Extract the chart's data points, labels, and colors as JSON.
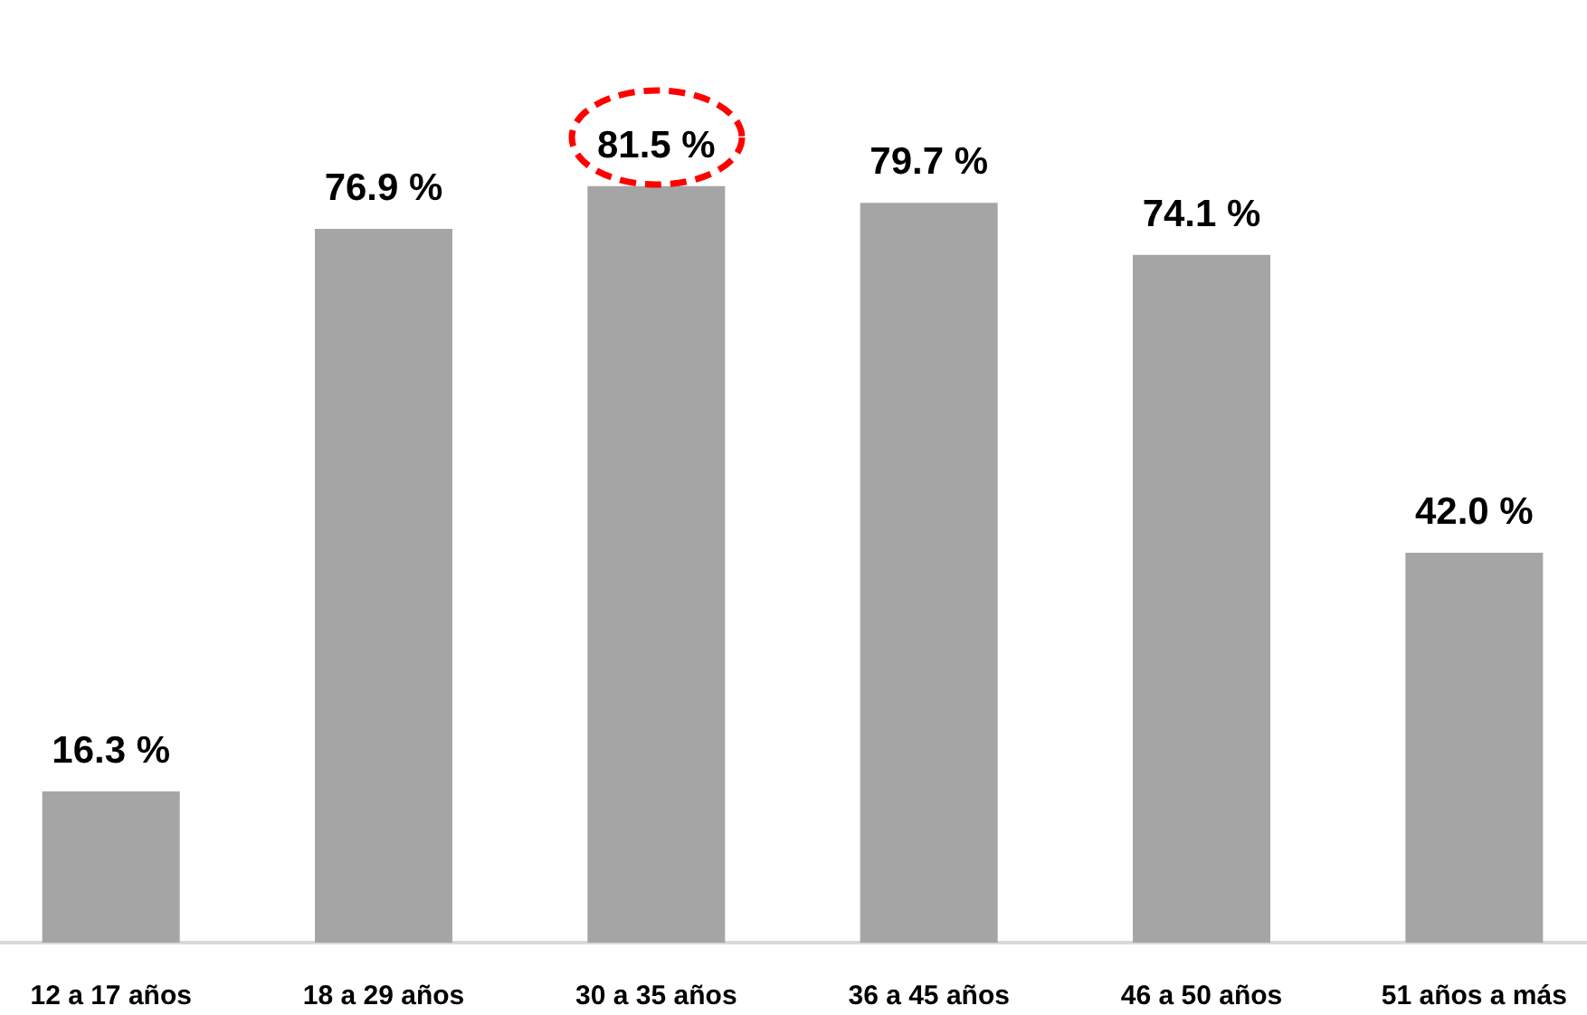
{
  "chart_data": {
    "type": "bar",
    "categories": [
      "12 a 17 años",
      "18 a 29 años",
      "30 a 35 años",
      "36 a 45 años",
      "46 a 50 años",
      "51 años a más"
    ],
    "values": [
      16.3,
      76.9,
      81.5,
      79.7,
      74.1,
      42.0
    ],
    "value_labels": [
      "16.3 %",
      "76.9 %",
      "81.5 %",
      "79.7 %",
      "74.1 %",
      "42.0 %"
    ],
    "color": "#a5a5a5"
  }
}
